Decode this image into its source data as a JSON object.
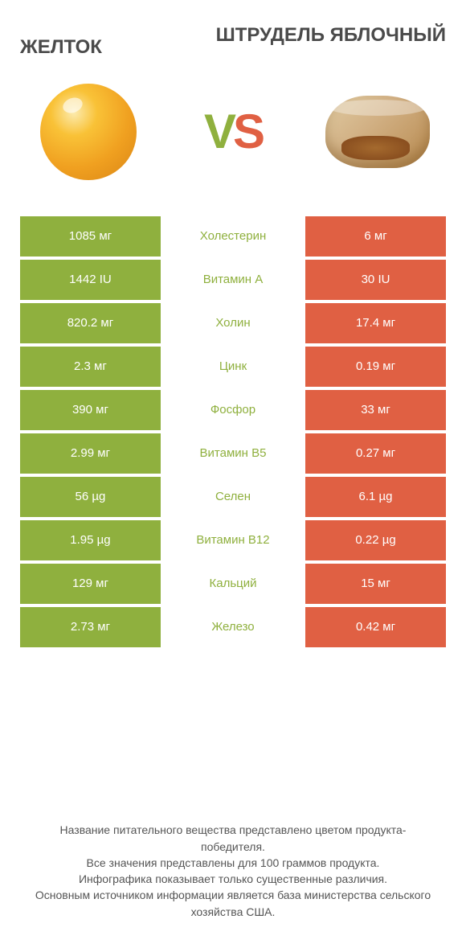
{
  "titles": {
    "left": "ЖЕЛТОК",
    "right": "ШТРУДЕЛЬ ЯБЛОЧНЫЙ"
  },
  "vs": {
    "v": "V",
    "s": "S"
  },
  "colors": {
    "green": "#8fb03e",
    "orange": "#e06043",
    "rowText": "#ffffff"
  },
  "rows": [
    {
      "left": "1085 мг",
      "label": "Холестерин",
      "right": "6 мг",
      "winner": "left"
    },
    {
      "left": "1442 IU",
      "label": "Витамин A",
      "right": "30 IU",
      "winner": "left"
    },
    {
      "left": "820.2 мг",
      "label": "Холин",
      "right": "17.4 мг",
      "winner": "left"
    },
    {
      "left": "2.3 мг",
      "label": "Цинк",
      "right": "0.19 мг",
      "winner": "left"
    },
    {
      "left": "390 мг",
      "label": "Фосфор",
      "right": "33 мг",
      "winner": "left"
    },
    {
      "left": "2.99 мг",
      "label": "Витамин B5",
      "right": "0.27 мг",
      "winner": "left"
    },
    {
      "left": "56 µg",
      "label": "Селен",
      "right": "6.1 µg",
      "winner": "left"
    },
    {
      "left": "1.95 µg",
      "label": "Витамин B12",
      "right": "0.22 µg",
      "winner": "left"
    },
    {
      "left": "129 мг",
      "label": "Кальций",
      "right": "15 мг",
      "winner": "left"
    },
    {
      "left": "2.73 мг",
      "label": "Железо",
      "right": "0.42 мг",
      "winner": "left"
    }
  ],
  "footer": [
    "Название питательного вещества представлено цветом продукта-победителя.",
    "Все значения представлены для 100 граммов продукта.",
    "Инфографика показывает только существенные различия.",
    "Основным источником информации является база министерства сельского хозяйства США."
  ]
}
